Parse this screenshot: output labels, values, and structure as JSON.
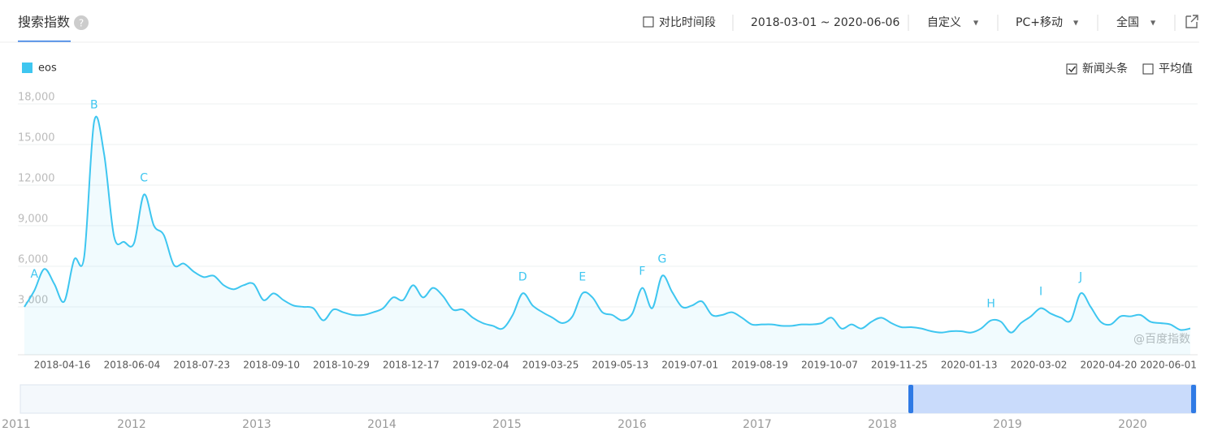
{
  "header": {
    "title": "搜索指数",
    "compare": "对比时间段",
    "date_range": "2018-03-01 ~ 2020-06-06",
    "custom": "自定义",
    "device": "PC+移动",
    "region": "全国"
  },
  "options": {
    "news": "新闻头条",
    "average": "平均值"
  },
  "watermark": "@百度指数",
  "navigator": {
    "years": [
      "2011",
      "2012",
      "2013",
      "2014",
      "2015",
      "2016",
      "2017",
      "2018",
      "2019",
      "2020"
    ]
  },
  "chart_data": {
    "type": "line",
    "categories": [
      null,
      null,
      null,
      null,
      null,
      null,
      "2018-04-16",
      null,
      null,
      null,
      null,
      null,
      null,
      "2018-06-04",
      null,
      null,
      null,
      null,
      null,
      null,
      "2018-07-23",
      null,
      null,
      null,
      null,
      null,
      null,
      "2018-09-10",
      null,
      null,
      null,
      null,
      null,
      null,
      "2018-10-29",
      null,
      null,
      null,
      null,
      null,
      null,
      "2018-12-17",
      null,
      null,
      null,
      null,
      null,
      null,
      "2019-02-04",
      null,
      null,
      null,
      null,
      null,
      null,
      "2019-03-25",
      null,
      null,
      null,
      null,
      null,
      null,
      "2019-05-13",
      null,
      null,
      null,
      null,
      null,
      null,
      "2019-07-01",
      null,
      null,
      null,
      null,
      null,
      null,
      "2019-08-19",
      null,
      null,
      null,
      null,
      null,
      null,
      "2019-10-07",
      null,
      null,
      null,
      null,
      null,
      null,
      "2019-11-25",
      null,
      null,
      null,
      null,
      null,
      null,
      "2020-01-13",
      null,
      null,
      null,
      null,
      null,
      null,
      "2020-03-02",
      null,
      null,
      null,
      null,
      null,
      null,
      "2020-04-20",
      null,
      null,
      null,
      null,
      null,
      "2020-06-01"
    ],
    "series": [
      {
        "name": "eos",
        "color": "#3ec6f0",
        "values": [
          3000,
          4200,
          5800,
          4700,
          3400,
          6500,
          6700,
          16700,
          14300,
          8200,
          7800,
          7700,
          11300,
          9000,
          8300,
          6100,
          6200,
          5600,
          5200,
          5300,
          4600,
          4300,
          4600,
          4700,
          3500,
          4000,
          3500,
          3100,
          3000,
          2900,
          2000,
          2800,
          2600,
          2400,
          2400,
          2600,
          2900,
          3700,
          3500,
          4600,
          3700,
          4400,
          3800,
          2800,
          2800,
          2200,
          1800,
          1600,
          1400,
          2400,
          4000,
          3100,
          2600,
          2200,
          1800,
          2300,
          4000,
          3700,
          2600,
          2400,
          2000,
          2500,
          4400,
          2900,
          5300,
          4100,
          3000,
          3100,
          3400,
          2400,
          2400,
          2600,
          2200,
          1700,
          1700,
          1700,
          1600,
          1600,
          1700,
          1700,
          1800,
          2200,
          1400,
          1700,
          1400,
          1900,
          2200,
          1800,
          1500,
          1500,
          1400,
          1200,
          1100,
          1200,
          1200,
          1100,
          1400,
          2000,
          1900,
          1100,
          1800,
          2300,
          2900,
          2500,
          2200,
          2000,
          4000,
          3000,
          1900,
          1700,
          2300,
          2300,
          2400,
          1900,
          1800,
          1700,
          1300,
          1400
        ]
      }
    ],
    "annotations": [
      {
        "text": "A",
        "at": 1
      },
      {
        "text": "B",
        "at": 7
      },
      {
        "text": "C",
        "at": 12
      },
      {
        "text": "D",
        "at": 50
      },
      {
        "text": "E",
        "at": 56
      },
      {
        "text": "F",
        "at": 62
      },
      {
        "text": "G",
        "at": 64
      },
      {
        "text": "H",
        "at": 97
      },
      {
        "text": "I",
        "at": 102
      },
      {
        "text": "J",
        "at": 106
      }
    ],
    "ylim": [
      0,
      18000
    ],
    "yticks": [
      {
        "value": 3000,
        "label": "3,000"
      },
      {
        "value": 6000,
        "label": "6,000"
      },
      {
        "value": 9000,
        "label": "9,000"
      },
      {
        "value": 12000,
        "label": "12,000"
      },
      {
        "value": 15000,
        "label": "15,000"
      },
      {
        "value": 18000,
        "label": "18,000"
      }
    ],
    "grid": true
  }
}
